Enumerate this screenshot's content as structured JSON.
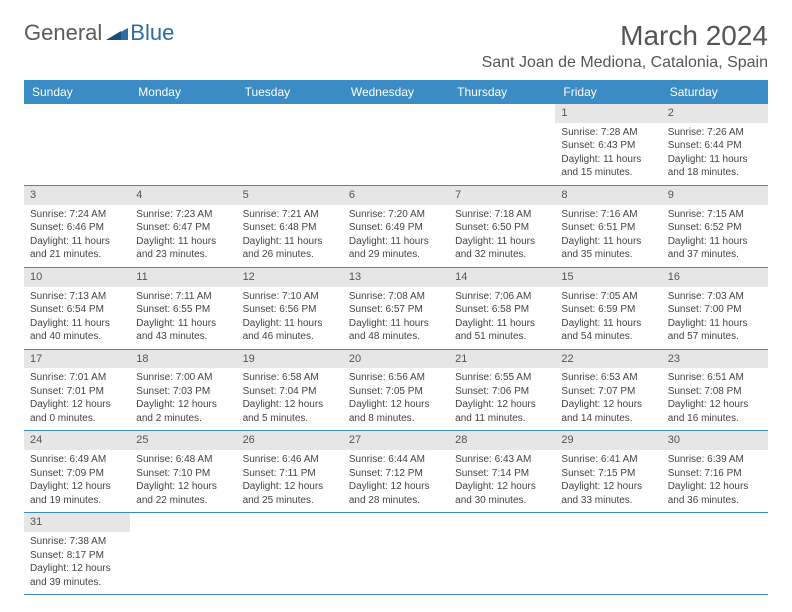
{
  "logo": {
    "part1": "General",
    "part2": "Blue"
  },
  "title": "March 2024",
  "location": "Sant Joan de Mediona, Catalonia, Spain",
  "colors": {
    "header_bg": "#3b8bc5",
    "header_text": "#ffffff",
    "daynum_bg": "#e6e6e6",
    "border": "#3b8bc5"
  },
  "day_names": [
    "Sunday",
    "Monday",
    "Tuesday",
    "Wednesday",
    "Thursday",
    "Friday",
    "Saturday"
  ],
  "weeks": [
    [
      null,
      null,
      null,
      null,
      null,
      {
        "n": "1",
        "sr": "Sunrise: 7:28 AM",
        "ss": "Sunset: 6:43 PM",
        "d1": "Daylight: 11 hours",
        "d2": "and 15 minutes."
      },
      {
        "n": "2",
        "sr": "Sunrise: 7:26 AM",
        "ss": "Sunset: 6:44 PM",
        "d1": "Daylight: 11 hours",
        "d2": "and 18 minutes."
      }
    ],
    [
      {
        "n": "3",
        "sr": "Sunrise: 7:24 AM",
        "ss": "Sunset: 6:46 PM",
        "d1": "Daylight: 11 hours",
        "d2": "and 21 minutes."
      },
      {
        "n": "4",
        "sr": "Sunrise: 7:23 AM",
        "ss": "Sunset: 6:47 PM",
        "d1": "Daylight: 11 hours",
        "d2": "and 23 minutes."
      },
      {
        "n": "5",
        "sr": "Sunrise: 7:21 AM",
        "ss": "Sunset: 6:48 PM",
        "d1": "Daylight: 11 hours",
        "d2": "and 26 minutes."
      },
      {
        "n": "6",
        "sr": "Sunrise: 7:20 AM",
        "ss": "Sunset: 6:49 PM",
        "d1": "Daylight: 11 hours",
        "d2": "and 29 minutes."
      },
      {
        "n": "7",
        "sr": "Sunrise: 7:18 AM",
        "ss": "Sunset: 6:50 PM",
        "d1": "Daylight: 11 hours",
        "d2": "and 32 minutes."
      },
      {
        "n": "8",
        "sr": "Sunrise: 7:16 AM",
        "ss": "Sunset: 6:51 PM",
        "d1": "Daylight: 11 hours",
        "d2": "and 35 minutes."
      },
      {
        "n": "9",
        "sr": "Sunrise: 7:15 AM",
        "ss": "Sunset: 6:52 PM",
        "d1": "Daylight: 11 hours",
        "d2": "and 37 minutes."
      }
    ],
    [
      {
        "n": "10",
        "sr": "Sunrise: 7:13 AM",
        "ss": "Sunset: 6:54 PM",
        "d1": "Daylight: 11 hours",
        "d2": "and 40 minutes."
      },
      {
        "n": "11",
        "sr": "Sunrise: 7:11 AM",
        "ss": "Sunset: 6:55 PM",
        "d1": "Daylight: 11 hours",
        "d2": "and 43 minutes."
      },
      {
        "n": "12",
        "sr": "Sunrise: 7:10 AM",
        "ss": "Sunset: 6:56 PM",
        "d1": "Daylight: 11 hours",
        "d2": "and 46 minutes."
      },
      {
        "n": "13",
        "sr": "Sunrise: 7:08 AM",
        "ss": "Sunset: 6:57 PM",
        "d1": "Daylight: 11 hours",
        "d2": "and 48 minutes."
      },
      {
        "n": "14",
        "sr": "Sunrise: 7:06 AM",
        "ss": "Sunset: 6:58 PM",
        "d1": "Daylight: 11 hours",
        "d2": "and 51 minutes."
      },
      {
        "n": "15",
        "sr": "Sunrise: 7:05 AM",
        "ss": "Sunset: 6:59 PM",
        "d1": "Daylight: 11 hours",
        "d2": "and 54 minutes."
      },
      {
        "n": "16",
        "sr": "Sunrise: 7:03 AM",
        "ss": "Sunset: 7:00 PM",
        "d1": "Daylight: 11 hours",
        "d2": "and 57 minutes."
      }
    ],
    [
      {
        "n": "17",
        "sr": "Sunrise: 7:01 AM",
        "ss": "Sunset: 7:01 PM",
        "d1": "Daylight: 12 hours",
        "d2": "and 0 minutes."
      },
      {
        "n": "18",
        "sr": "Sunrise: 7:00 AM",
        "ss": "Sunset: 7:03 PM",
        "d1": "Daylight: 12 hours",
        "d2": "and 2 minutes."
      },
      {
        "n": "19",
        "sr": "Sunrise: 6:58 AM",
        "ss": "Sunset: 7:04 PM",
        "d1": "Daylight: 12 hours",
        "d2": "and 5 minutes."
      },
      {
        "n": "20",
        "sr": "Sunrise: 6:56 AM",
        "ss": "Sunset: 7:05 PM",
        "d1": "Daylight: 12 hours",
        "d2": "and 8 minutes."
      },
      {
        "n": "21",
        "sr": "Sunrise: 6:55 AM",
        "ss": "Sunset: 7:06 PM",
        "d1": "Daylight: 12 hours",
        "d2": "and 11 minutes."
      },
      {
        "n": "22",
        "sr": "Sunrise: 6:53 AM",
        "ss": "Sunset: 7:07 PM",
        "d1": "Daylight: 12 hours",
        "d2": "and 14 minutes."
      },
      {
        "n": "23",
        "sr": "Sunrise: 6:51 AM",
        "ss": "Sunset: 7:08 PM",
        "d1": "Daylight: 12 hours",
        "d2": "and 16 minutes."
      }
    ],
    [
      {
        "n": "24",
        "sr": "Sunrise: 6:49 AM",
        "ss": "Sunset: 7:09 PM",
        "d1": "Daylight: 12 hours",
        "d2": "and 19 minutes."
      },
      {
        "n": "25",
        "sr": "Sunrise: 6:48 AM",
        "ss": "Sunset: 7:10 PM",
        "d1": "Daylight: 12 hours",
        "d2": "and 22 minutes."
      },
      {
        "n": "26",
        "sr": "Sunrise: 6:46 AM",
        "ss": "Sunset: 7:11 PM",
        "d1": "Daylight: 12 hours",
        "d2": "and 25 minutes."
      },
      {
        "n": "27",
        "sr": "Sunrise: 6:44 AM",
        "ss": "Sunset: 7:12 PM",
        "d1": "Daylight: 12 hours",
        "d2": "and 28 minutes."
      },
      {
        "n": "28",
        "sr": "Sunrise: 6:43 AM",
        "ss": "Sunset: 7:14 PM",
        "d1": "Daylight: 12 hours",
        "d2": "and 30 minutes."
      },
      {
        "n": "29",
        "sr": "Sunrise: 6:41 AM",
        "ss": "Sunset: 7:15 PM",
        "d1": "Daylight: 12 hours",
        "d2": "and 33 minutes."
      },
      {
        "n": "30",
        "sr": "Sunrise: 6:39 AM",
        "ss": "Sunset: 7:16 PM",
        "d1": "Daylight: 12 hours",
        "d2": "and 36 minutes."
      }
    ],
    [
      {
        "n": "31",
        "sr": "Sunrise: 7:38 AM",
        "ss": "Sunset: 8:17 PM",
        "d1": "Daylight: 12 hours",
        "d2": "and 39 minutes."
      },
      null,
      null,
      null,
      null,
      null,
      null
    ]
  ]
}
